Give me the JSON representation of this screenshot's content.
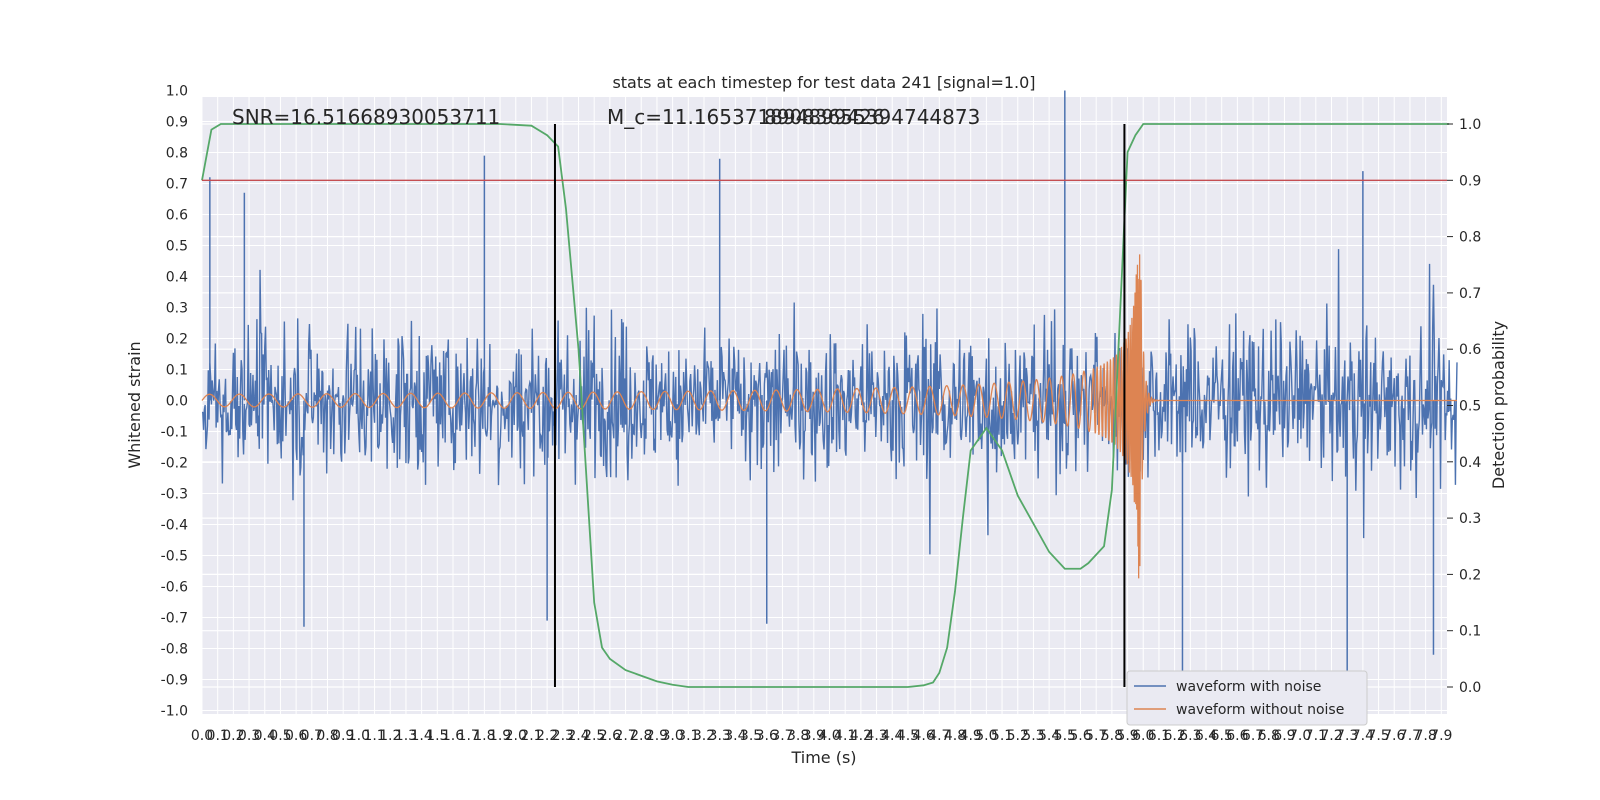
{
  "chart_data": {
    "type": "line",
    "title": "stats at each timestep for test data 241 [signal=1.0]",
    "xlabel": "Time (s)",
    "ylabel": "Whitened strain",
    "y2label": "Detection probability",
    "xlim": [
      0.0,
      8.0
    ],
    "ylim": [
      -1.05,
      1.05
    ],
    "y2lim": [
      -0.02,
      1.02
    ],
    "x_ticks": [
      0.0,
      0.1,
      0.2,
      0.3,
      0.4,
      0.5,
      0.6,
      0.7,
      0.8,
      0.9,
      1.0,
      1.1,
      1.2,
      1.3,
      1.4,
      1.5,
      1.6,
      1.7,
      1.8,
      1.9,
      2.0,
      2.1,
      2.2,
      2.3,
      2.4,
      2.5,
      2.6,
      2.7,
      2.8,
      2.9,
      3.0,
      3.1,
      3.2,
      3.3,
      3.4,
      3.5,
      3.6,
      3.7,
      3.8,
      3.9,
      4.0,
      4.1,
      4.2,
      4.3,
      4.4,
      4.5,
      4.6,
      4.7,
      4.8,
      4.9,
      5.0,
      5.1,
      5.2,
      5.3,
      5.4,
      5.5,
      5.6,
      5.7,
      5.8,
      5.9,
      6.0,
      6.1,
      6.2,
      6.3,
      6.4,
      6.5,
      6.6,
      6.7,
      6.8,
      6.9,
      7.0,
      7.1,
      7.2,
      7.3,
      7.4,
      7.5,
      7.6,
      7.7,
      7.8,
      7.9
    ],
    "y_ticks": [
      -1.0,
      -0.9,
      -0.8,
      -0.7,
      -0.6,
      -0.5,
      -0.4,
      -0.3,
      -0.2,
      -0.1,
      0.0,
      0.1,
      0.2,
      0.3,
      0.4,
      0.5,
      0.6,
      0.7,
      0.8,
      0.9,
      1.0
    ],
    "y2_ticks": [
      0.0,
      0.1,
      0.2,
      0.3,
      0.4,
      0.5,
      0.6,
      0.7,
      0.8,
      0.9,
      1.0
    ],
    "annotations": [
      {
        "text": "SNR=16.51668930053711"
      },
      {
        "text": "M_c=11.165371894899426"
      },
      {
        "text": "89083655394744873"
      }
    ],
    "threshold_line": {
      "y2": 0.9,
      "color": "#c44e52"
    },
    "vertical_lines": [
      {
        "x": 2.25
      },
      {
        "x": 5.88
      }
    ],
    "series": [
      {
        "name": "waveform with noise",
        "color": "#4c72b0",
        "axis": "left",
        "kind": "noise",
        "envelope": 0.3,
        "peaks": [
          {
            "x": 0.05,
            "y": 0.72
          },
          {
            "x": 0.27,
            "y": 0.67
          },
          {
            "x": 0.65,
            "y": -0.73
          },
          {
            "x": 1.8,
            "y": 0.79
          },
          {
            "x": 2.2,
            "y": -0.71
          },
          {
            "x": 3.3,
            "y": 0.78
          },
          {
            "x": 3.6,
            "y": -0.72
          },
          {
            "x": 5.5,
            "y": 1.0
          },
          {
            "x": 6.25,
            "y": -0.92
          },
          {
            "x": 7.3,
            "y": -0.98
          },
          {
            "x": 7.4,
            "y": 0.74
          },
          {
            "x": 7.85,
            "y": -0.82
          }
        ]
      },
      {
        "name": "waveform without noise",
        "color": "#dd8452",
        "axis": "left",
        "kind": "chirp",
        "t_merger": 5.98,
        "amp_start": 0.02,
        "amp_peak": 0.58
      },
      {
        "name": "detection probability",
        "color": "#55a868",
        "axis": "right",
        "x": [
          0.0,
          0.06,
          0.12,
          0.2,
          1.0,
          1.9,
          2.1,
          2.2,
          2.27,
          2.32,
          2.4,
          2.5,
          2.55,
          2.6,
          2.7,
          2.8,
          2.9,
          3.0,
          3.1,
          3.2,
          3.5,
          4.0,
          4.5,
          4.6,
          4.66,
          4.7,
          4.75,
          4.8,
          4.85,
          4.9,
          4.95,
          5.0,
          5.1,
          5.2,
          5.3,
          5.4,
          5.5,
          5.6,
          5.65,
          5.75,
          5.8,
          5.85,
          5.9,
          5.95,
          6.0,
          6.1,
          7.0,
          7.95
        ],
        "y": [
          0.9,
          0.99,
          1.0,
          1.0,
          1.0,
          1.0,
          0.997,
          0.98,
          0.96,
          0.85,
          0.6,
          0.15,
          0.07,
          0.05,
          0.03,
          0.02,
          0.01,
          0.004,
          0.0,
          0.0,
          0.0,
          0.0,
          0.0,
          0.003,
          0.008,
          0.025,
          0.07,
          0.17,
          0.3,
          0.42,
          0.44,
          0.46,
          0.42,
          0.34,
          0.29,
          0.24,
          0.21,
          0.21,
          0.22,
          0.25,
          0.35,
          0.65,
          0.95,
          0.98,
          1.0,
          1.0,
          1.0,
          1.0
        ]
      }
    ],
    "legend": {
      "placement": "lower-right",
      "entries": [
        "waveform with noise",
        "waveform without noise"
      ]
    },
    "grid": true
  }
}
